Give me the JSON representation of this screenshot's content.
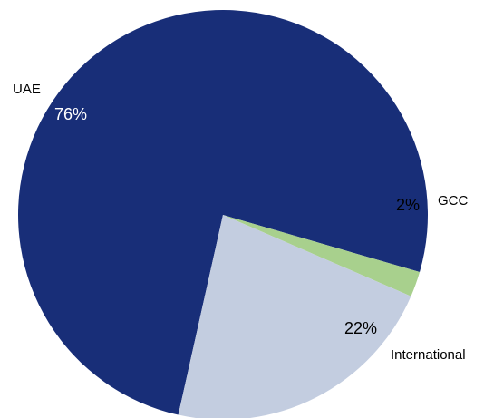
{
  "chart_data": {
    "type": "pie",
    "slices": [
      {
        "label": "UAE",
        "value": 76,
        "value_label": "76%",
        "color": "#182e78",
        "value_label_color": "#ffffff"
      },
      {
        "label": "GCC",
        "value": 2,
        "value_label": "2%",
        "color": "#a8d08d",
        "value_label_color": "#000000"
      },
      {
        "label": "International",
        "value": 22,
        "value_label": "22%",
        "color": "#c3cde0",
        "value_label_color": "#000000"
      }
    ],
    "title": "",
    "legend": "none"
  }
}
